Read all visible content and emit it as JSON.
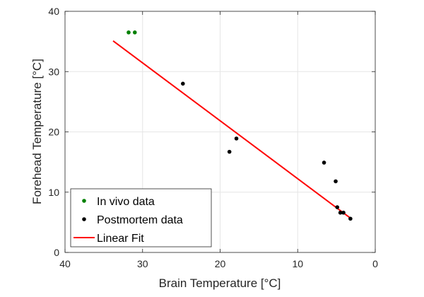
{
  "chart_data": {
    "type": "scatter",
    "xlabel": "Brain Temperature [°C]",
    "ylabel": "Forehead Temperature [°C]",
    "xlim": [
      0,
      40
    ],
    "ylim": [
      0,
      40
    ],
    "x_reversed": true,
    "xticks": [
      40,
      30,
      20,
      10,
      0
    ],
    "yticks": [
      0,
      10,
      20,
      30,
      40
    ],
    "grid": true,
    "legend_position": "bottom-left",
    "series": [
      {
        "name": "In vivo data",
        "kind": "scatter",
        "color": "#008000",
        "points": [
          [
            31.8,
            36.5
          ],
          [
            31.0,
            36.5
          ]
        ]
      },
      {
        "name": "Postmortem data",
        "kind": "scatter",
        "color": "#000000",
        "points": [
          [
            24.8,
            28.0
          ],
          [
            17.9,
            18.9
          ],
          [
            18.8,
            16.7
          ],
          [
            6.6,
            14.9
          ],
          [
            5.1,
            11.8
          ],
          [
            4.9,
            7.5
          ],
          [
            4.5,
            6.6
          ],
          [
            4.1,
            6.6
          ],
          [
            3.2,
            5.6
          ]
        ]
      },
      {
        "name": "Linear Fit",
        "kind": "line",
        "color": "#ff0000",
        "points": [
          [
            33.8,
            35.1
          ],
          [
            3.2,
            5.7
          ]
        ]
      }
    ]
  }
}
